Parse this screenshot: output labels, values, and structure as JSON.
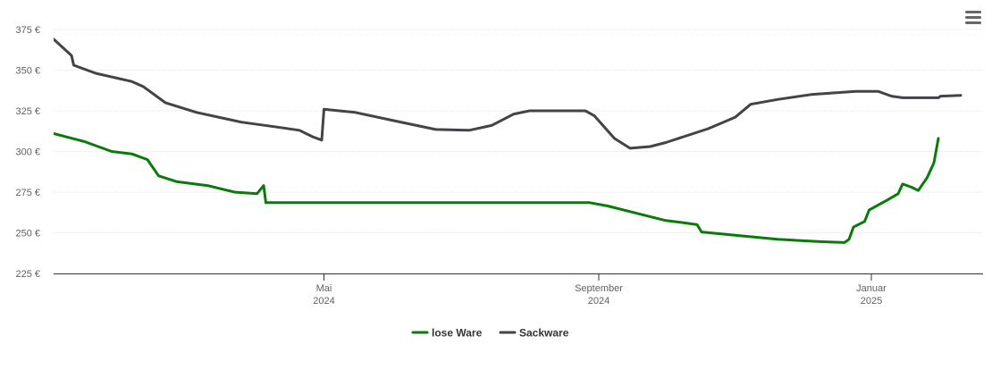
{
  "menu": {
    "icon": "hamburger-menu-icon"
  },
  "chart_data": {
    "type": "line",
    "title": "",
    "xlabel": "",
    "ylabel": "",
    "ylim": [
      225,
      375
    ],
    "yticks": [
      "225 €",
      "250 €",
      "275 €",
      "300 €",
      "325 €",
      "350 €",
      "375 €"
    ],
    "ytick_values": [
      225,
      250,
      275,
      300,
      325,
      350,
      375
    ],
    "xlim": [
      "2024-01-01",
      "2025-01-31"
    ],
    "xticks": [
      {
        "date": "2024-05-01",
        "month": "Mai",
        "year": "2024"
      },
      {
        "date": "2024-09-01",
        "month": "September",
        "year": "2024"
      },
      {
        "date": "2025-01-01",
        "month": "Januar",
        "year": "2025"
      }
    ],
    "grid": true,
    "legend": "bottom-center",
    "series": [
      {
        "name": "lose Ware",
        "color": "#0a7a0a",
        "points": [
          [
            "2024-01-01",
            311
          ],
          [
            "2024-01-15",
            306
          ],
          [
            "2024-01-27",
            300
          ],
          [
            "2024-02-05",
            298.5
          ],
          [
            "2024-02-12",
            295
          ],
          [
            "2024-02-17",
            285
          ],
          [
            "2024-02-25",
            281.5
          ],
          [
            "2024-03-10",
            279
          ],
          [
            "2024-03-22",
            275
          ],
          [
            "2024-04-01",
            274
          ],
          [
            "2024-04-04",
            279
          ],
          [
            "2024-04-05",
            268.5
          ],
          [
            "2024-05-25",
            268.5
          ],
          [
            "2024-08-28",
            268.5
          ],
          [
            "2024-09-05",
            266.5
          ],
          [
            "2024-09-18",
            262
          ],
          [
            "2024-10-01",
            257.5
          ],
          [
            "2024-10-10",
            256
          ],
          [
            "2024-10-15",
            255
          ],
          [
            "2024-10-17",
            250.5
          ],
          [
            "2024-11-01",
            248.5
          ],
          [
            "2024-11-20",
            246
          ],
          [
            "2024-12-10",
            244.5
          ],
          [
            "2024-12-20",
            244
          ],
          [
            "2024-12-22",
            246
          ],
          [
            "2024-12-24",
            253.5
          ],
          [
            "2024-12-29",
            257
          ],
          [
            "2024-12-31",
            264
          ],
          [
            "2025-01-08",
            270
          ],
          [
            "2025-01-13",
            274
          ],
          [
            "2025-01-15",
            280
          ],
          [
            "2025-01-19",
            278
          ],
          [
            "2025-01-22",
            276
          ],
          [
            "2025-01-26",
            284
          ],
          [
            "2025-01-29",
            293
          ],
          [
            "2025-01-31",
            308
          ]
        ]
      },
      {
        "name": "Sackware",
        "color": "#434348",
        "points": [
          [
            "2024-01-01",
            369
          ],
          [
            "2024-01-09",
            359
          ],
          [
            "2024-01-10",
            353
          ],
          [
            "2024-01-20",
            348
          ],
          [
            "2024-02-05",
            343
          ],
          [
            "2024-02-10",
            340
          ],
          [
            "2024-02-20",
            330
          ],
          [
            "2024-03-05",
            324
          ],
          [
            "2024-03-25",
            318
          ],
          [
            "2024-04-10",
            315
          ],
          [
            "2024-04-20",
            313
          ],
          [
            "2024-04-26",
            309
          ],
          [
            "2024-04-30",
            307
          ],
          [
            "2024-05-01",
            326
          ],
          [
            "2024-05-15",
            324
          ],
          [
            "2024-06-01",
            319
          ],
          [
            "2024-06-20",
            313.5
          ],
          [
            "2024-07-05",
            313
          ],
          [
            "2024-07-15",
            316
          ],
          [
            "2024-07-25",
            323
          ],
          [
            "2024-08-01",
            325
          ],
          [
            "2024-08-20",
            325
          ],
          [
            "2024-08-26",
            325
          ],
          [
            "2024-08-30",
            322
          ],
          [
            "2024-09-08",
            308
          ],
          [
            "2024-09-15",
            302
          ],
          [
            "2024-09-24",
            303
          ],
          [
            "2024-10-01",
            305.5
          ],
          [
            "2024-10-20",
            314
          ],
          [
            "2024-11-01",
            321
          ],
          [
            "2024-11-08",
            329
          ],
          [
            "2024-11-20",
            332
          ],
          [
            "2024-12-05",
            335
          ],
          [
            "2024-12-25",
            337
          ],
          [
            "2025-01-04",
            337
          ],
          [
            "2025-01-10",
            334
          ],
          [
            "2025-01-15",
            333
          ],
          [
            "2025-01-20",
            333
          ],
          [
            "2025-01-28",
            333
          ],
          [
            "2025-01-31",
            333
          ],
          [
            "2025-02-01",
            334
          ],
          [
            "2025-02-10",
            334.5
          ]
        ]
      }
    ]
  }
}
